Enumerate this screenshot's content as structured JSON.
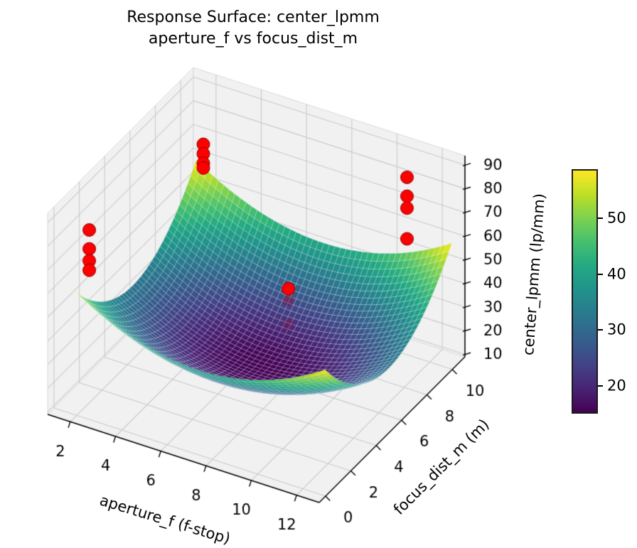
{
  "chart_data": {
    "type": "surface3d",
    "title": "Response Surface: center_lpmm\naperture_f vs focus_dist_m",
    "xlabel": "aperture_f (f-stop)",
    "ylabel": "focus_dist_m (m)",
    "zlabel": "center_lpmm (lp/mm)",
    "view": {
      "elev_deg": 30,
      "azim_deg": -60,
      "projection": "orthographic"
    },
    "axes": {
      "xlim": [
        1,
        13
      ],
      "ylim": [
        -0.5,
        11
      ],
      "zlim": [
        9,
        94
      ],
      "xticks": [
        2,
        4,
        6,
        8,
        10,
        12
      ],
      "yticks": [
        0,
        2,
        4,
        6,
        8,
        10
      ],
      "zticks": [
        10,
        20,
        30,
        40,
        50,
        60,
        70,
        80,
        90
      ],
      "pane_color": "#f1f1f1",
      "pane_edge_color": "#dadada",
      "grid_color": "#cbcbcb",
      "axis_line_color": "#000000",
      "tick_label_color": "#000000"
    },
    "surface": {
      "colormap": "viridis",
      "colormap_stops": [
        "#440154",
        "#482475",
        "#414487",
        "#355f8d",
        "#2a788e",
        "#21918c",
        "#22a884",
        "#44bf70",
        "#7ad151",
        "#bddf26",
        "#fde725"
      ],
      "vmin": 15,
      "vmax": 58.8,
      "x_range": [
        1.4,
        12.7
      ],
      "y_range": [
        0.5,
        10.5
      ],
      "grid_resolution": 46,
      "mesh_line_color": "rgba(255,255,255,0.30)",
      "model": "z = z0 + ax*(x-cx)^2 + ay*(y-cy)^2",
      "params": {
        "z0": 15,
        "ax": 0.55,
        "cx": 7.05,
        "ay": 1.05,
        "cy": 5.5
      }
    },
    "scatter": {
      "color": "#ff0000",
      "edge_color": "#8b0000",
      "marker_radius_px": 9,
      "points": [
        {
          "x": 2,
          "y": 1,
          "z": 82
        },
        {
          "x": 2,
          "y": 1,
          "z": 74
        },
        {
          "x": 2,
          "y": 1,
          "z": 69
        },
        {
          "x": 2,
          "y": 1,
          "z": 65
        },
        {
          "x": 2,
          "y": 10,
          "z": 70
        },
        {
          "x": 2,
          "y": 10,
          "z": 66
        },
        {
          "x": 2,
          "y": 10,
          "z": 62
        },
        {
          "x": 2,
          "y": 10,
          "z": 60
        },
        {
          "x": 11,
          "y": 10,
          "z": 84
        },
        {
          "x": 11,
          "y": 10,
          "z": 76
        },
        {
          "x": 11,
          "y": 10,
          "z": 71
        },
        {
          "x": 11,
          "y": 10,
          "z": 58
        },
        {
          "x": 8,
          "y": 6,
          "z": 49
        },
        {
          "x": 8,
          "y": 6,
          "z": 44,
          "behind_surface": true,
          "opacity": 0.42
        },
        {
          "x": 8,
          "y": 6,
          "z": 34,
          "behind_surface": true,
          "opacity": 0.28
        }
      ]
    },
    "colorbar": {
      "vmin": 15,
      "vmax": 58.8,
      "ticks": [
        20,
        30,
        40,
        50
      ],
      "colormap": "viridis"
    }
  }
}
